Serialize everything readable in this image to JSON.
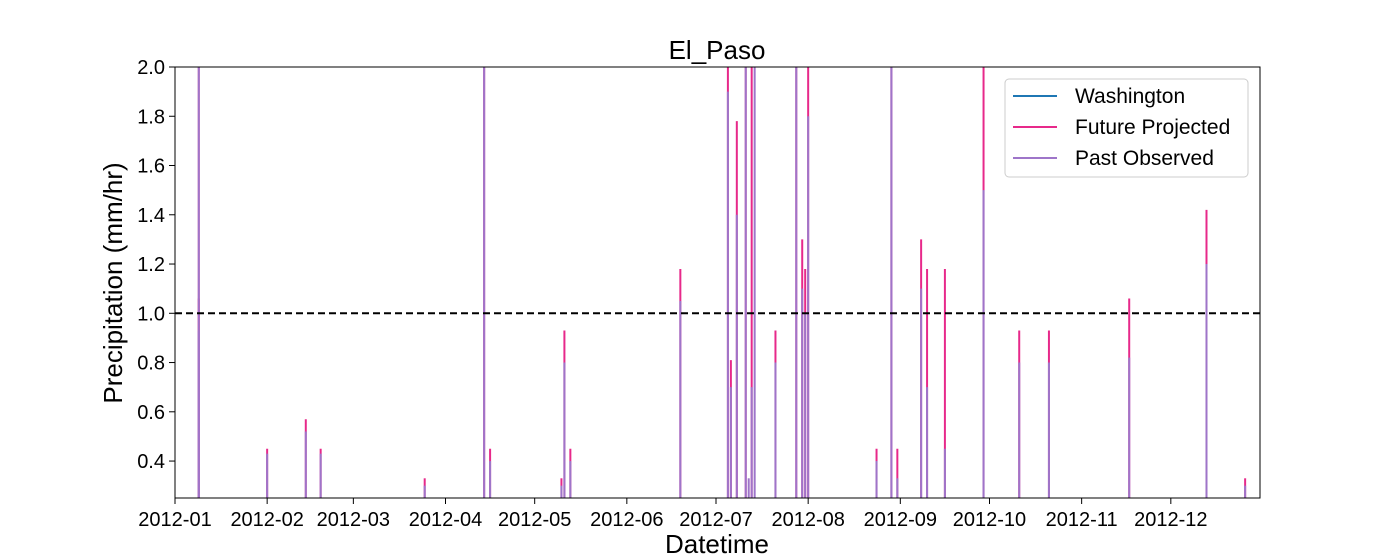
{
  "chart_data": {
    "type": "line",
    "title": "El_Paso",
    "xlabel": "Datetime",
    "ylabel": "Precipitation (mm/hr)",
    "xlim": [
      "2012-01-01",
      "2012-12-31"
    ],
    "ylim": [
      0.25,
      2.0
    ],
    "x_ticks": [
      "2012-01",
      "2012-02",
      "2012-03",
      "2012-04",
      "2012-05",
      "2012-06",
      "2012-07",
      "2012-08",
      "2012-09",
      "2012-10",
      "2012-11",
      "2012-12"
    ],
    "y_ticks": [
      "0.4",
      "0.6",
      "0.8",
      "1.0",
      "1.2",
      "1.4",
      "1.6",
      "1.8",
      "2.0"
    ],
    "grid": false,
    "legend_position": "top-right",
    "reference_line": {
      "y": 1.0,
      "style": "dashed",
      "color": "#000000"
    },
    "series": [
      {
        "name": "Washington",
        "color": "#1f77b4",
        "points": []
      },
      {
        "name": "Future Projected",
        "color": "#e7298a",
        "points": [
          [
            "2012-01-09",
            2.0
          ],
          [
            "2012-01-09",
            1.06
          ],
          [
            "2012-02-01",
            0.45
          ],
          [
            "2012-02-14",
            0.57
          ],
          [
            "2012-02-19",
            0.45
          ],
          [
            "2012-03-25",
            0.33
          ],
          [
            "2012-04-14",
            2.0
          ],
          [
            "2012-04-16",
            0.45
          ],
          [
            "2012-05-10",
            0.33
          ],
          [
            "2012-05-11",
            0.93
          ],
          [
            "2012-05-13",
            0.45
          ],
          [
            "2012-06-19",
            1.18
          ],
          [
            "2012-07-05",
            2.0
          ],
          [
            "2012-07-06",
            0.81
          ],
          [
            "2012-07-08",
            1.78
          ],
          [
            "2012-07-11",
            2.0
          ],
          [
            "2012-07-13",
            2.0
          ],
          [
            "2012-07-21",
            0.93
          ],
          [
            "2012-07-28",
            2.0
          ],
          [
            "2012-07-30",
            1.3
          ],
          [
            "2012-07-31",
            1.18
          ],
          [
            "2012-08-01",
            2.0
          ],
          [
            "2012-08-24",
            0.45
          ],
          [
            "2012-08-29",
            2.0
          ],
          [
            "2012-08-31",
            0.45
          ],
          [
            "2012-09-08",
            1.3
          ],
          [
            "2012-09-10",
            1.18
          ],
          [
            "2012-09-16",
            1.18
          ],
          [
            "2012-09-29",
            2.0
          ],
          [
            "2012-10-11",
            0.93
          ],
          [
            "2012-10-21",
            0.93
          ],
          [
            "2012-11-17",
            1.06
          ],
          [
            "2012-12-13",
            1.42
          ],
          [
            "2012-12-26",
            0.33
          ]
        ]
      },
      {
        "name": "Past Observed",
        "color": "#9e75c9",
        "points": [
          [
            "2012-01-09",
            2.0
          ],
          [
            "2012-01-09",
            0.93
          ],
          [
            "2012-02-01",
            0.43
          ],
          [
            "2012-02-14",
            0.52
          ],
          [
            "2012-02-19",
            0.43
          ],
          [
            "2012-03-25",
            0.3
          ],
          [
            "2012-04-14",
            2.0
          ],
          [
            "2012-04-16",
            0.4
          ],
          [
            "2012-05-10",
            0.3
          ],
          [
            "2012-05-11",
            0.8
          ],
          [
            "2012-05-13",
            0.4
          ],
          [
            "2012-06-19",
            1.05
          ],
          [
            "2012-07-05",
            1.9
          ],
          [
            "2012-07-06",
            0.7
          ],
          [
            "2012-07-08",
            1.4
          ],
          [
            "2012-07-11",
            2.0
          ],
          [
            "2012-07-12",
            0.33
          ],
          [
            "2012-07-13",
            0.7
          ],
          [
            "2012-07-14",
            2.0
          ],
          [
            "2012-07-21",
            0.8
          ],
          [
            "2012-07-28",
            2.0
          ],
          [
            "2012-07-30",
            1.1
          ],
          [
            "2012-07-31",
            1.0
          ],
          [
            "2012-08-01",
            1.8
          ],
          [
            "2012-08-24",
            0.4
          ],
          [
            "2012-08-29",
            2.0
          ],
          [
            "2012-08-31",
            0.33
          ],
          [
            "2012-09-08",
            1.1
          ],
          [
            "2012-09-10",
            0.7
          ],
          [
            "2012-09-16",
            0.45
          ],
          [
            "2012-09-29",
            1.5
          ],
          [
            "2012-10-11",
            0.8
          ],
          [
            "2012-10-21",
            0.8
          ],
          [
            "2012-11-17",
            0.82
          ],
          [
            "2012-12-13",
            1.2
          ],
          [
            "2012-12-26",
            0.3
          ]
        ]
      }
    ]
  }
}
